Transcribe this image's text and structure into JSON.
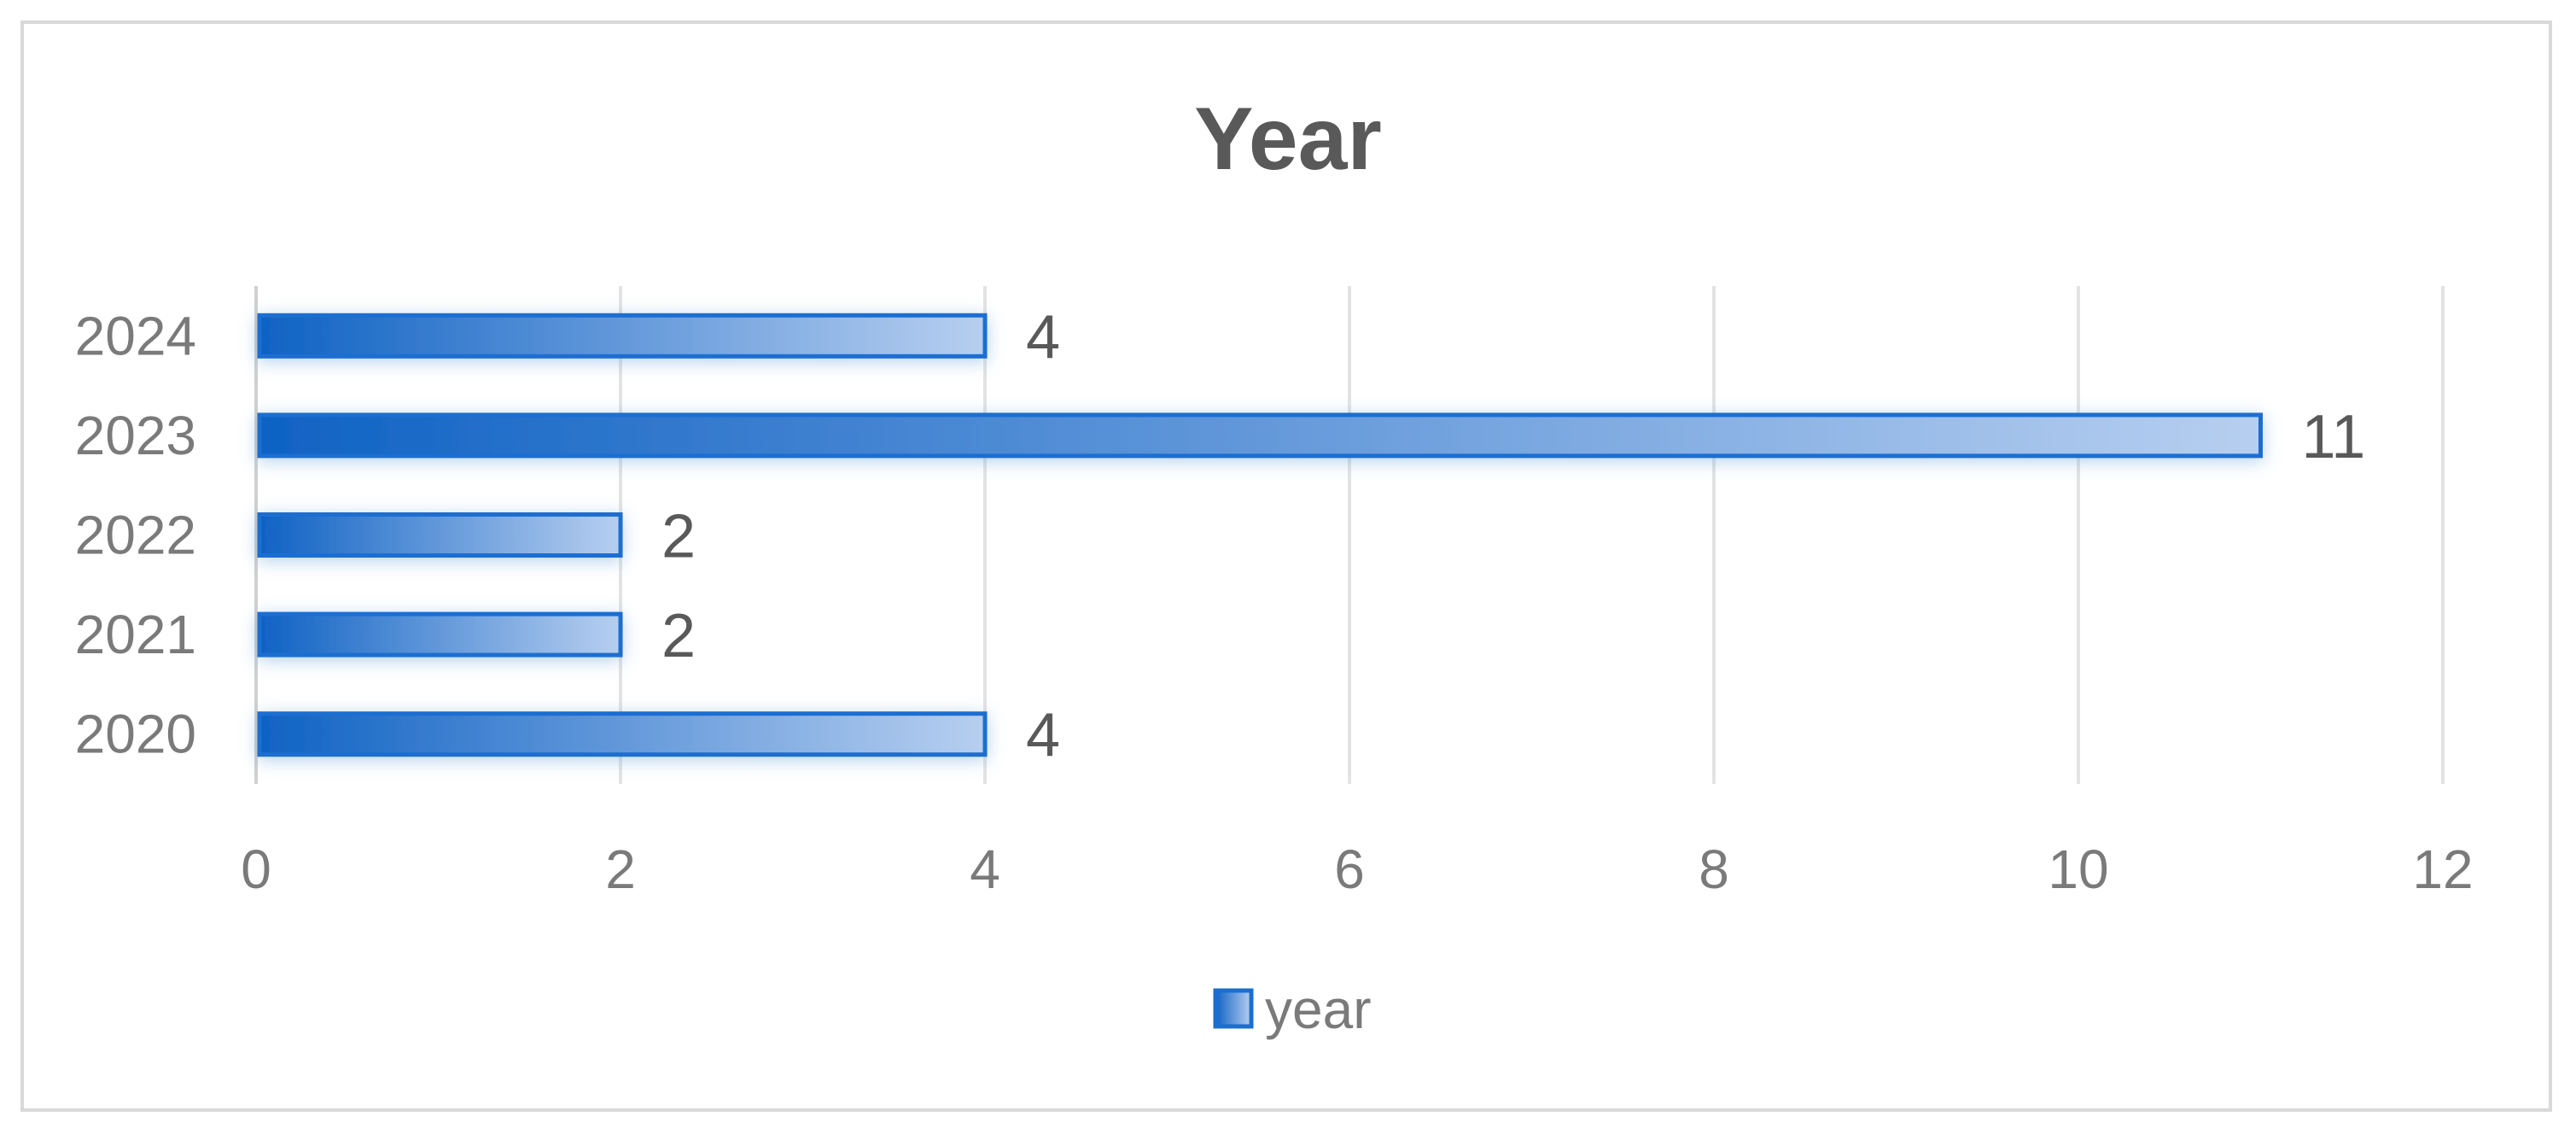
{
  "chart_data": {
    "type": "bar",
    "orientation": "horizontal",
    "title": "Year",
    "categories": [
      "2020",
      "2021",
      "2022",
      "2023",
      "2024"
    ],
    "series": [
      {
        "name": "year",
        "values": [
          4,
          2,
          2,
          11,
          4
        ]
      }
    ],
    "data_labels": [
      "4",
      "2",
      "2",
      "11",
      "4"
    ],
    "xlim": [
      0,
      12
    ],
    "x_ticks": [
      0,
      2,
      4,
      6,
      8,
      10,
      12
    ],
    "x_tick_labels": [
      "0",
      "2",
      "4",
      "6",
      "8",
      "10",
      "12"
    ],
    "xlabel": "",
    "ylabel": "",
    "grid": "vertical",
    "legend": "bottom",
    "colors": {
      "bar_dark": "#0f62c4",
      "bar_light": "#b7cff0",
      "bar_border": "#1a6ed1",
      "text_dark": "#595959",
      "text_light": "#7a7a7a",
      "grid": "#e3e3e3",
      "frame": "#d9d9d9"
    }
  }
}
